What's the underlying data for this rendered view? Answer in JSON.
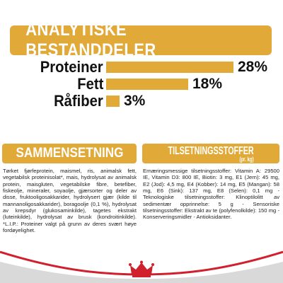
{
  "header": {
    "title": "ANALYTISKE BESTANDDELER"
  },
  "nutrients": [
    {
      "label": "Proteiner",
      "value": "28%",
      "percent": 28
    },
    {
      "label": "Fett",
      "value": "18%",
      "percent": 18
    },
    {
      "label": "Råfiber",
      "value": "3%",
      "percent": 3
    }
  ],
  "composition": {
    "title": "SAMMENSETNING",
    "text": "Tørket fjørfeprotein, maismel, ris, animalsk fett, vegetabilsk proteinisolat*, mais, hydrolysat av animalsk protein, maisgluten, vegetabilske fibre, betefiber, fiskeolje, mineraler, soyaolje, gjærsorter og deler av disse, fruktooligosakkarider, hydrolysert gjær (kilde til mannanoligosakkarider), boragoolje (0,1 %), hydrolysat av krepsdyr (glukosaminkilde), tagetes ekstrakt (luteinkilde), hydrolysat av brusk (kondroitinkilde). *L.I.P.: Proteiner valgt på grunn av deres svært høye fordøyelighet."
  },
  "additives": {
    "title": "TILSETNINGSSTOFFER",
    "subtitle": "(pr. kg)",
    "text": "Ernæringsmessige tilsetningsstoffer: Vitamin A: 29500 IE, Vitamin D3: 800 IE, Biotin: 3 mg, E1 (Jern): 45 mg, E2 (Jod): 4,5 mg, E4 (Kobber): 14 mg, E5 (Mangan): 58 mg, E6 (Sink): 137 mg, E8 (Selen): 0,1 mg - Teknologiske tilsetningsstoffer: Klinoptilolitt av sedimentær opprinnelse: 5 g - Sensoriske tilsetningsstoffer: Ekstrakt av te (polyfenolkilde): 150 mg - Konserveringsmidler - Antioksidanter."
  },
  "colors": {
    "gold": "#e1a937",
    "red": "#d0202e",
    "grey": "#d9d9d9"
  },
  "footer": {
    "logo_icon": "crown-icon"
  }
}
